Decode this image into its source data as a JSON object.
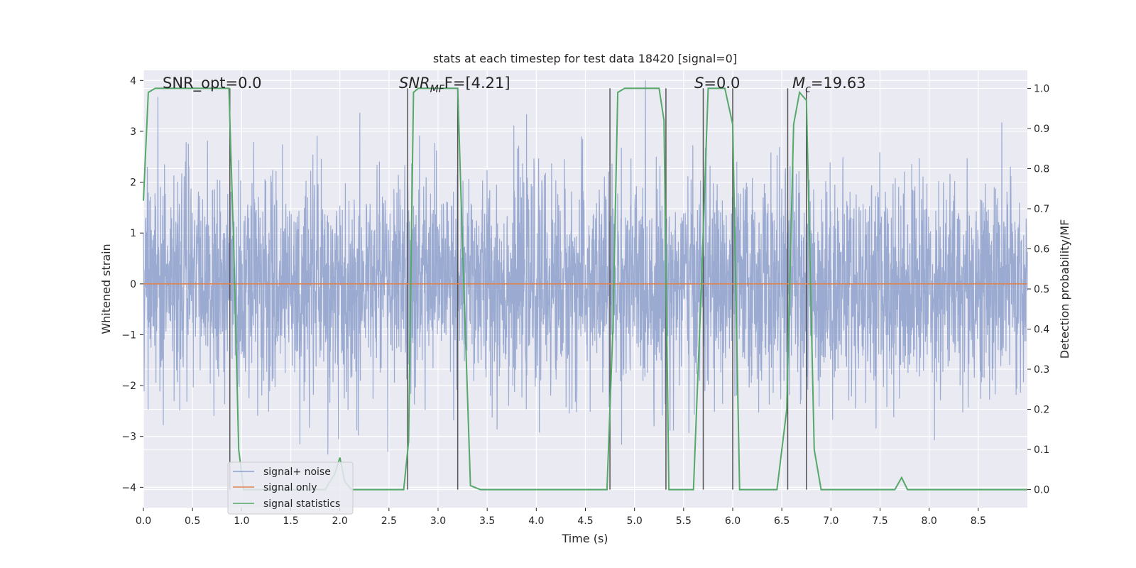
{
  "chart_data": {
    "type": "line",
    "title": "stats at each timestep for test data 18420 [signal=0]",
    "xlabel": "Time (s)",
    "ylabel": "Whitened strain",
    "ylabel_right": "Detection probability/MF",
    "xlim": [
      0.0,
      9.0
    ],
    "ylim_left": [
      -4.4,
      4.2
    ],
    "ylim_right": [
      -0.045,
      1.045
    ],
    "x_ticks": [
      "0.0",
      "0.5",
      "1.0",
      "1.5",
      "2.0",
      "2.5",
      "3.0",
      "3.5",
      "4.0",
      "4.5",
      "5.0",
      "5.5",
      "6.0",
      "6.5",
      "7.0",
      "7.5",
      "8.0",
      "8.5"
    ],
    "y_ticks_left": [
      "4",
      "3",
      "2",
      "1",
      "0",
      "−1",
      "−2",
      "−3",
      "−4"
    ],
    "y_ticks_right": [
      "1.0",
      "0.9",
      "0.8",
      "0.7",
      "0.6",
      "0.5",
      "0.4",
      "0.3",
      "0.2",
      "0.1",
      "0.0"
    ],
    "annotations": [
      {
        "text": "SNR_opt=0.0"
      },
      {
        "text": "SNR",
        "sub": "MF",
        "rest": "F=[4.21]"
      },
      {
        "text": "S",
        "rest": "=0.0"
      },
      {
        "text": "M",
        "sub": "c",
        "rest": "=19.63"
      }
    ],
    "legend": {
      "placement": "lower-left",
      "entries": [
        {
          "label": "signal+ noise",
          "color": "#8c9fcb"
        },
        {
          "label": "signal only",
          "color": "#dd8452"
        },
        {
          "label": "signal statistics",
          "color": "#55a868"
        }
      ]
    },
    "series": [
      {
        "name": "signal+ noise",
        "color": "#8c9fcb",
        "axis": "left",
        "envelope": {
          "typical_peak": 2.3,
          "max_peak": 4.0,
          "min_peak": -3.7
        }
      },
      {
        "name": "signal only",
        "color": "#dd8452",
        "axis": "left",
        "values": "0 throughout"
      },
      {
        "name": "signal statistics",
        "color": "#55a868",
        "axis": "right",
        "x": [
          0.0,
          0.05,
          0.12,
          0.3,
          0.5,
          0.7,
          0.87,
          0.92,
          0.97,
          1.02,
          1.1,
          1.3,
          1.5,
          1.7,
          1.85,
          1.95,
          2.0,
          2.05,
          2.12,
          2.3,
          2.5,
          2.65,
          2.7,
          2.75,
          2.8,
          3.0,
          3.2,
          3.25,
          3.33,
          3.43,
          3.6,
          4.0,
          4.5,
          4.72,
          4.78,
          4.83,
          4.9,
          5.1,
          5.25,
          5.3,
          5.35,
          5.42,
          5.6,
          5.68,
          5.75,
          5.92,
          6.0,
          6.07,
          6.3,
          6.45,
          6.55,
          6.62,
          6.68,
          6.75,
          6.83,
          6.9,
          7.1,
          7.5,
          7.65,
          7.72,
          7.78,
          7.85,
          8.0,
          8.5,
          9.0
        ],
        "values": [
          0.72,
          0.99,
          1.0,
          1.0,
          1.0,
          1.0,
          1.0,
          0.6,
          0.1,
          0.0,
          0.0,
          0.0,
          0.0,
          0.0,
          0.0,
          0.04,
          0.08,
          0.02,
          0.0,
          0.0,
          0.0,
          0.0,
          0.12,
          0.99,
          1.0,
          1.0,
          1.0,
          0.6,
          0.01,
          0.0,
          0.0,
          0.0,
          0.0,
          0.0,
          0.4,
          0.99,
          1.0,
          1.0,
          1.0,
          0.92,
          0.0,
          0.0,
          0.0,
          0.5,
          1.0,
          1.0,
          0.91,
          0.0,
          0.0,
          0.0,
          0.2,
          0.91,
          0.99,
          0.97,
          0.1,
          0.0,
          0.0,
          0.0,
          0.0,
          0.03,
          0.0,
          0.0,
          0.0,
          0.0,
          0.0
        ]
      },
      {
        "name": "",
        "color": "#555555",
        "axis": "right",
        "type": "vertical-lines",
        "x": [
          0.88,
          2.69,
          3.2,
          4.75,
          5.32,
          5.7,
          6.0,
          6.56,
          6.75
        ]
      }
    ]
  }
}
